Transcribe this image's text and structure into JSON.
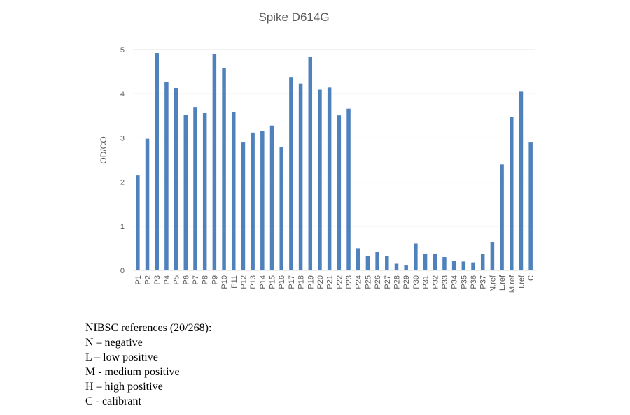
{
  "chart_data": {
    "type": "bar",
    "title": "Spike D614G",
    "xlabel": "",
    "ylabel": "OD/CO",
    "ylim": [
      0,
      5
    ],
    "yticks": [
      0,
      1,
      2,
      3,
      4,
      5
    ],
    "grid": true,
    "legend": "none",
    "bar_color": "#4f81bd",
    "categories": [
      "P1",
      "P2",
      "P3",
      "P4",
      "P5",
      "P6",
      "P7",
      "P8",
      "P9",
      "P10",
      "P11",
      "P12",
      "P13",
      "P14",
      "P15",
      "P16",
      "P17",
      "P18",
      "P19",
      "P20",
      "P21",
      "P22",
      "P23",
      "P24",
      "P25",
      "P26",
      "P27",
      "P28",
      "P29",
      "P30",
      "P31",
      "P32",
      "P33",
      "P34",
      "P35",
      "P36",
      "P37",
      "N.ref",
      "L.ref",
      "M.ref",
      "H.ref",
      "C"
    ],
    "values": [
      2.15,
      2.98,
      4.92,
      4.27,
      4.13,
      3.52,
      3.7,
      3.56,
      4.89,
      4.58,
      3.58,
      2.91,
      3.12,
      3.15,
      3.28,
      2.8,
      4.38,
      4.23,
      4.84,
      4.09,
      4.14,
      3.51,
      3.66,
      0.5,
      0.32,
      0.42,
      0.32,
      0.15,
      0.11,
      0.61,
      0.38,
      0.38,
      0.3,
      0.22,
      0.2,
      0.18,
      0.38,
      0.64,
      2.4,
      3.48,
      4.06,
      2.91
    ]
  },
  "notes": {
    "heading": "NIBSC references (20/268):",
    "lines": [
      "N – negative",
      "L – low positive",
      "M - medium positive",
      "H – high positive",
      "C - calibrant"
    ]
  }
}
